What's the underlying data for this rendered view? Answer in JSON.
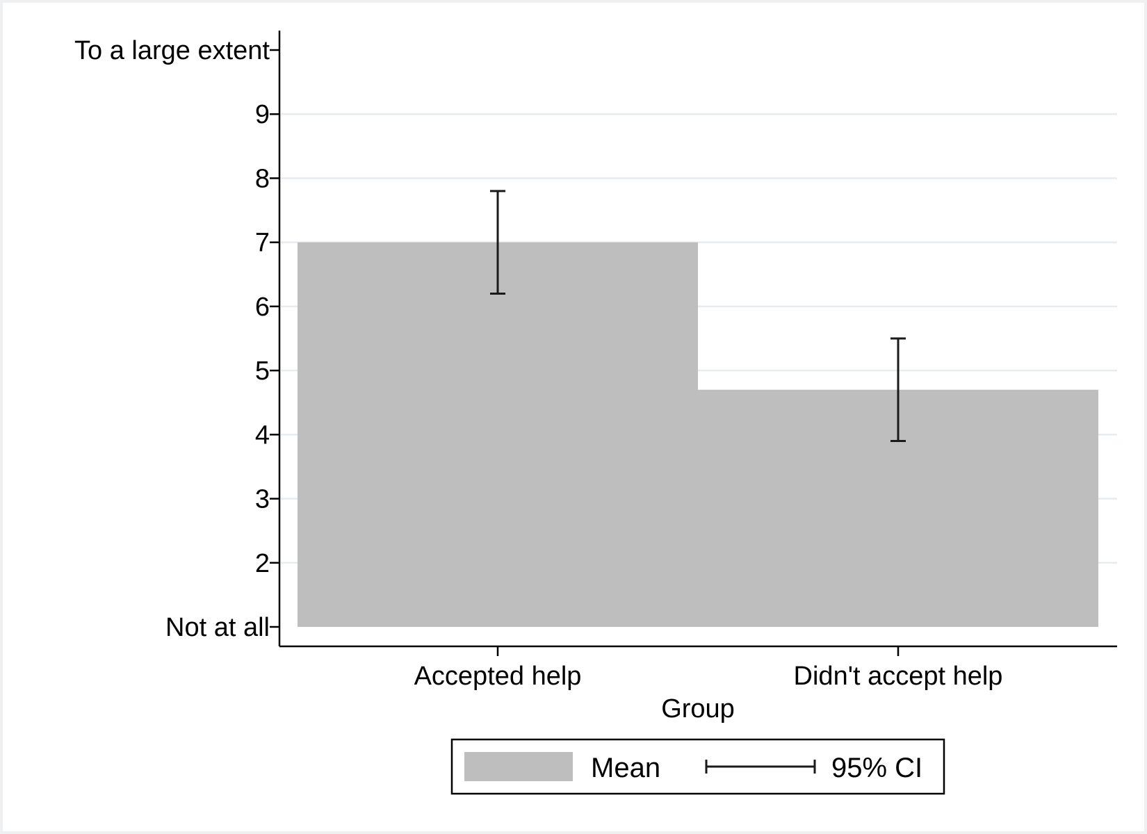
{
  "chart_data": {
    "type": "bar",
    "title": "",
    "xlabel": "Group",
    "ylabel": "",
    "categories": [
      "Accepted help",
      "Didn't accept help"
    ],
    "series": [
      {
        "name": "Mean",
        "values": [
          7.0,
          4.7
        ],
        "ci_lower": [
          6.2,
          3.9
        ],
        "ci_upper": [
          7.8,
          5.5
        ]
      }
    ],
    "ylim": [
      1,
      10
    ],
    "yticks": [
      {
        "value": 1,
        "label": "Not at all"
      },
      {
        "value": 2,
        "label": "2"
      },
      {
        "value": 3,
        "label": "3"
      },
      {
        "value": 4,
        "label": "4"
      },
      {
        "value": 5,
        "label": "5"
      },
      {
        "value": 6,
        "label": "6"
      },
      {
        "value": 7,
        "label": "7"
      },
      {
        "value": 8,
        "label": "8"
      },
      {
        "value": 9,
        "label": "9"
      },
      {
        "value": 10,
        "label": "To a large extent"
      }
    ],
    "grid": true,
    "legend": {
      "position": "bottom",
      "entries": [
        "Mean",
        "95% CI"
      ]
    },
    "colors": {
      "bar": "#bebebe",
      "error_bar": "#1a1a1a",
      "grid": "#e6ecef",
      "background": "#ffffff",
      "outer_background": "#eef0f2"
    }
  }
}
